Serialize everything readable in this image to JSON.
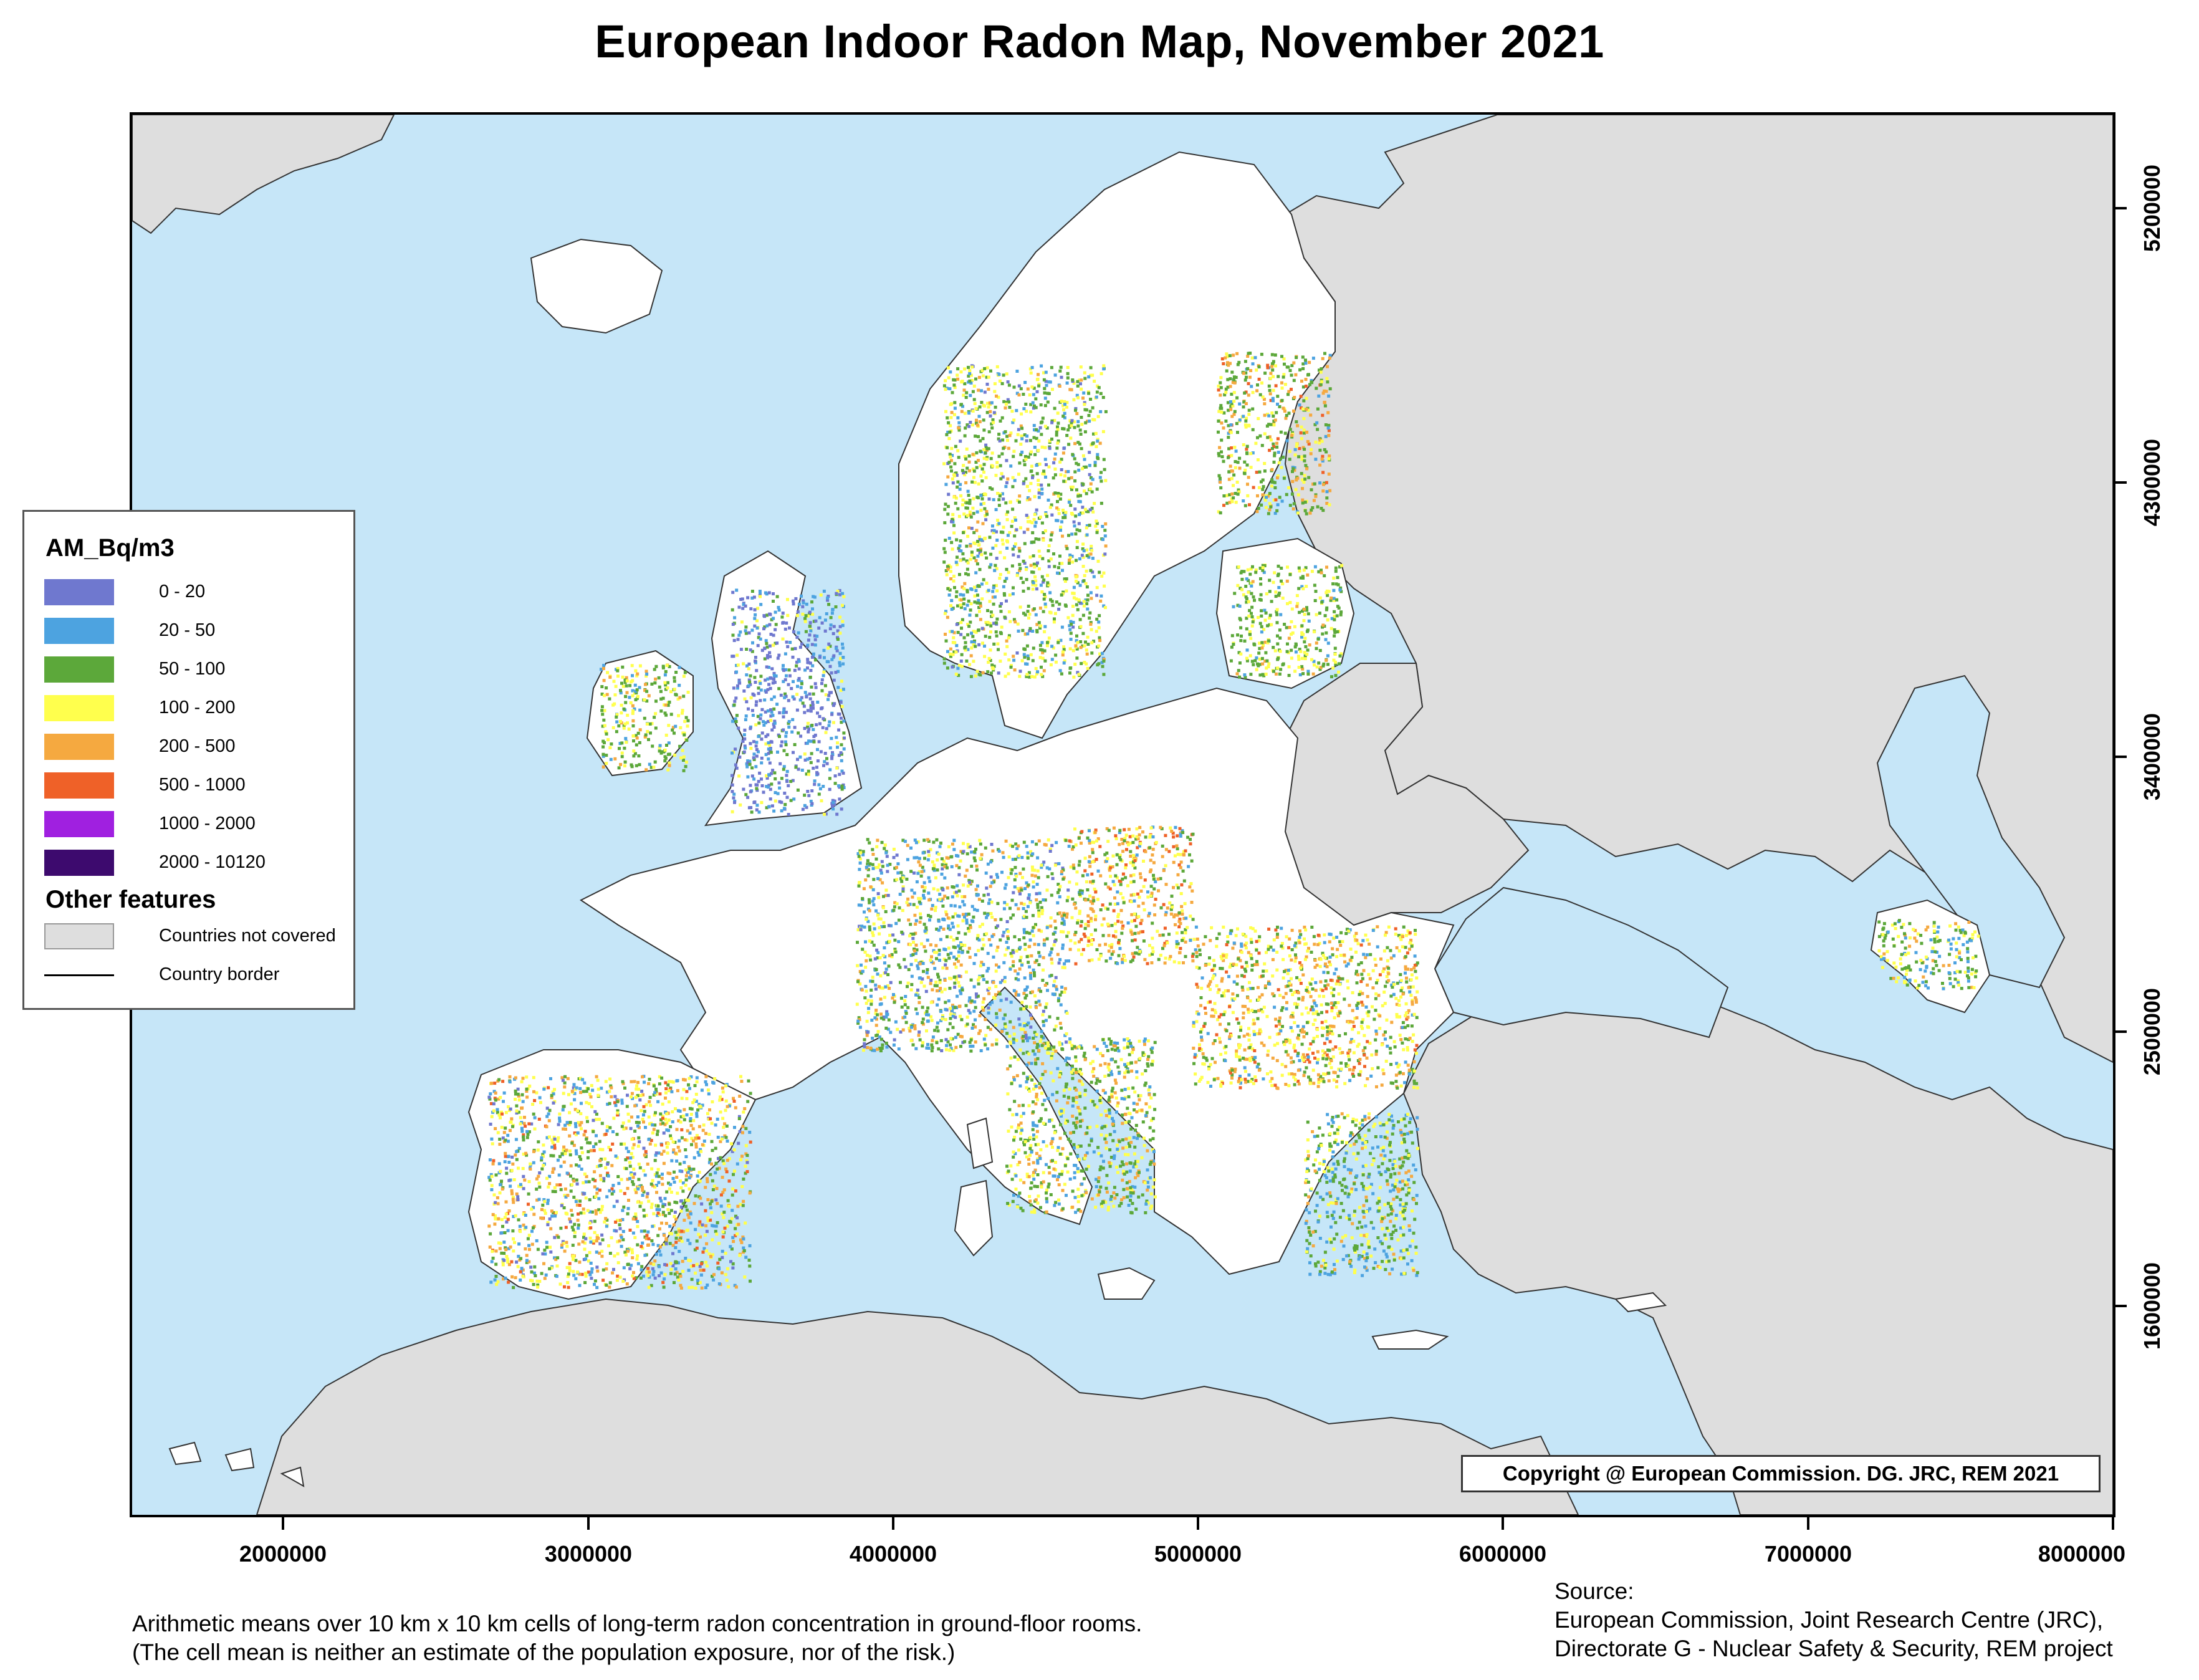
{
  "title": "European Indoor Radon Map, November 2021",
  "map": {
    "x_axis_ticks": [
      "2000000",
      "3000000",
      "4000000",
      "5000000",
      "6000000",
      "7000000",
      "8000000"
    ],
    "y_axis_ticks": [
      "5200000",
      "4300000",
      "3400000",
      "2500000",
      "1600000"
    ],
    "copyright": "Copyright @ European Commission. DG. JRC, REM 2021",
    "colors": {
      "sea": "#c6e6f8",
      "not_covered": "#dedede",
      "covered_no_data": "#ffffff",
      "border": "#333333"
    }
  },
  "legend": {
    "title": "AM_Bq/m3",
    "classes": [
      {
        "label": "0 - 20",
        "color": "#6f78cf"
      },
      {
        "label": "20 - 50",
        "color": "#4da3e0"
      },
      {
        "label": "50 - 100",
        "color": "#5ca83a"
      },
      {
        "label": "100 - 200",
        "color": "#ffff4d"
      },
      {
        "label": "200 - 500",
        "color": "#f5a940"
      },
      {
        "label": "500 - 1000",
        "color": "#ef6128"
      },
      {
        "label": "1000 - 2000",
        "color": "#a020e0"
      },
      {
        "label": "2000 - 10120",
        "color": "#3d0a6e"
      }
    ],
    "other_title": "Other features",
    "other": [
      {
        "label": "Countries not covered",
        "type": "fill",
        "color": "#dedede"
      },
      {
        "label": "Country border",
        "type": "line",
        "color": "#000000"
      }
    ]
  },
  "caption": {
    "line1": "Arithmetic means over 10 km x 10 km cells of long-term radon concentration in ground-floor rooms.",
    "line2": "(The cell mean is neither an estimate of the population exposure, nor of the risk.)"
  },
  "source": {
    "line1": "Source:",
    "line2": "European Commission, Joint Research Centre (JRC),",
    "line3": "Directorate G - Nuclear Safety & Security, REM project"
  }
}
